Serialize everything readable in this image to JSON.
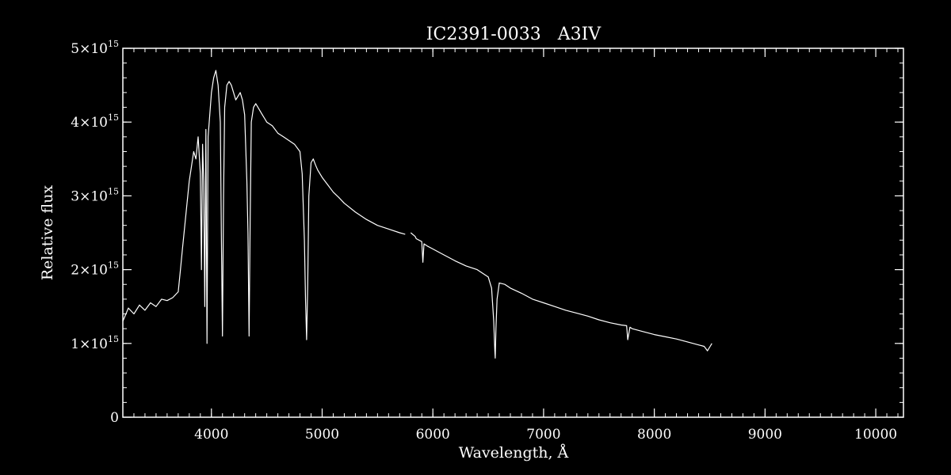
{
  "chart_data": {
    "type": "line",
    "title": "IC2391-0033   A3IV",
    "xlabel": "Wavelength, Å",
    "ylabel": "Relative flux",
    "xlim": [
      3200,
      10250
    ],
    "ylim": [
      0,
      5000000000000000.0
    ],
    "x_ticks": [
      {
        "value": 4000,
        "label": "4000"
      },
      {
        "value": 5000,
        "label": "5000"
      },
      {
        "value": 6000,
        "label": "6000"
      },
      {
        "value": 7000,
        "label": "7000"
      },
      {
        "value": 8000,
        "label": "8000"
      },
      {
        "value": 9000,
        "label": "9000"
      },
      {
        "value": 10000,
        "label": "10000"
      }
    ],
    "y_ticks": [
      {
        "value": 0,
        "mant": "0",
        "exp": ""
      },
      {
        "value": 1000000000000000.0,
        "mant": "1×10",
        "exp": "15"
      },
      {
        "value": 2000000000000000.0,
        "mant": "2×10",
        "exp": "15"
      },
      {
        "value": 3000000000000000.0,
        "mant": "3×10",
        "exp": "15"
      },
      {
        "value": 4000000000000000.0,
        "mant": "4×10",
        "exp": "15"
      },
      {
        "value": 5000000000000000.0,
        "mant": "5×10",
        "exp": "15"
      }
    ],
    "x_minor_step": 100,
    "y_minor_step": 200000000000000.0,
    "series": [
      {
        "color": "#ffffff",
        "x": [
          3200,
          3250,
          3300,
          3350,
          3400,
          3450,
          3500,
          3550,
          3600,
          3650,
          3700,
          3720,
          3740,
          3760,
          3780,
          3800,
          3820,
          3840,
          3860,
          3880,
          3900,
          3910,
          3920,
          3930,
          3940,
          3950,
          3960,
          3970,
          3980,
          3990,
          4000,
          4020,
          4040,
          4060,
          4080,
          4090,
          4100,
          4110,
          4120,
          4140,
          4160,
          4180,
          4200,
          4220,
          4240,
          4260,
          4280,
          4300,
          4320,
          4330,
          4340,
          4350,
          4360,
          4380,
          4400,
          4420,
          4440,
          4460,
          4480,
          4500,
          4550,
          4600,
          4650,
          4700,
          4750,
          4800,
          4820,
          4840,
          4850,
          4860,
          4870,
          4880,
          4900,
          4920,
          4940,
          4960,
          5000,
          5050,
          5100,
          5150,
          5200,
          5300,
          5400,
          5500,
          5600,
          5700,
          5750,
          5760,
          5800,
          5840,
          5850,
          5900,
          5910,
          5920,
          5950,
          6000,
          6100,
          6200,
          6300,
          6400,
          6450,
          6500,
          6530,
          6550,
          6560,
          6563,
          6570,
          6580,
          6600,
          6650,
          6700,
          6800,
          6900,
          7000,
          7100,
          7200,
          7300,
          7400,
          7500,
          7600,
          7700,
          7750,
          7760,
          7780,
          7800,
          7900,
          8000,
          8100,
          8200,
          8300,
          8400,
          8450,
          8480,
          8500,
          8520
        ],
        "y": [
          1300000000000000.0,
          1480000000000000.0,
          1400000000000000.0,
          1520000000000000.0,
          1450000000000000.0,
          1550000000000000.0,
          1500000000000000.0,
          1600000000000000.0,
          1580000000000000.0,
          1620000000000000.0,
          1700000000000000.0,
          2000000000000000.0,
          2300000000000000.0,
          2600000000000000.0,
          2900000000000000.0,
          3200000000000000.0,
          3400000000000000.0,
          3600000000000000.0,
          3500000000000000.0,
          3800000000000000.0,
          3300000000000000.0,
          2000000000000000.0,
          3700000000000000.0,
          3200000000000000.0,
          1500000000000000.0,
          3900000000000000.0,
          1000000000000000.0,
          3800000000000000.0,
          4000000000000000.0,
          4200000000000000.0,
          4400000000000000.0,
          4600000000000000.0,
          4700000000000000.0,
          4500000000000000.0,
          4000000000000000.0,
          2500000000000000.0,
          1100000000000000.0,
          3000000000000000.0,
          4200000000000000.0,
          4500000000000000.0,
          4550000000000000.0,
          4500000000000000.0,
          4400000000000000.0,
          4300000000000000.0,
          4350000000000000.0,
          4400000000000000.0,
          4300000000000000.0,
          4100000000000000.0,
          3200000000000000.0,
          2500000000000000.0,
          1100000000000000.0,
          2700000000000000.0,
          4000000000000000.0,
          4200000000000000.0,
          4250000000000000.0,
          4200000000000000.0,
          4150000000000000.0,
          4100000000000000.0,
          4050000000000000.0,
          4000000000000000.0,
          3950000000000000.0,
          3850000000000000.0,
          3800000000000000.0,
          3750000000000000.0,
          3700000000000000.0,
          3600000000000000.0,
          3300000000000000.0,
          2400000000000000.0,
          1600000000000000.0,
          1050000000000000.0,
          1800000000000000.0,
          3000000000000000.0,
          3450000000000000.0,
          3500000000000000.0,
          3420000000000000.0,
          3350000000000000.0,
          3250000000000000.0,
          3150000000000000.0,
          3050000000000000.0,
          2980000000000000.0,
          2900000000000000.0,
          2780000000000000.0,
          2680000000000000.0,
          2600000000000000.0,
          2550000000000000.0,
          2500000000000000.0,
          2480000000000000.0,
          null,
          2500000000000000.0,
          2450000000000000.0,
          2420000000000000.0,
          2380000000000000.0,
          2100000000000000.0,
          2350000000000000.0,
          2320000000000000.0,
          2280000000000000.0,
          2200000000000000.0,
          2120000000000000.0,
          2050000000000000.0,
          2000000000000000.0,
          1950000000000000.0,
          1900000000000000.0,
          1750000000000000.0,
          1300000000000000.0,
          900000000000000.0,
          800000000000000.0,
          1200000000000000.0,
          1600000000000000.0,
          1820000000000000.0,
          1800000000000000.0,
          1750000000000000.0,
          1680000000000000.0,
          1600000000000000.0,
          1550000000000000.0,
          1500000000000000.0,
          1450000000000000.0,
          1410000000000000.0,
          1370000000000000.0,
          1320000000000000.0,
          1280000000000000.0,
          1250000000000000.0,
          1240000000000000.0,
          1050000000000000.0,
          1220000000000000.0,
          1200000000000000.0,
          1160000000000000.0,
          1120000000000000.0,
          1090000000000000.0,
          1060000000000000.0,
          1020000000000000.0,
          980000000000000.0,
          960000000000000.0,
          900000000000000.0,
          950000000000000.0,
          1000000000000000.0
        ]
      }
    ]
  }
}
